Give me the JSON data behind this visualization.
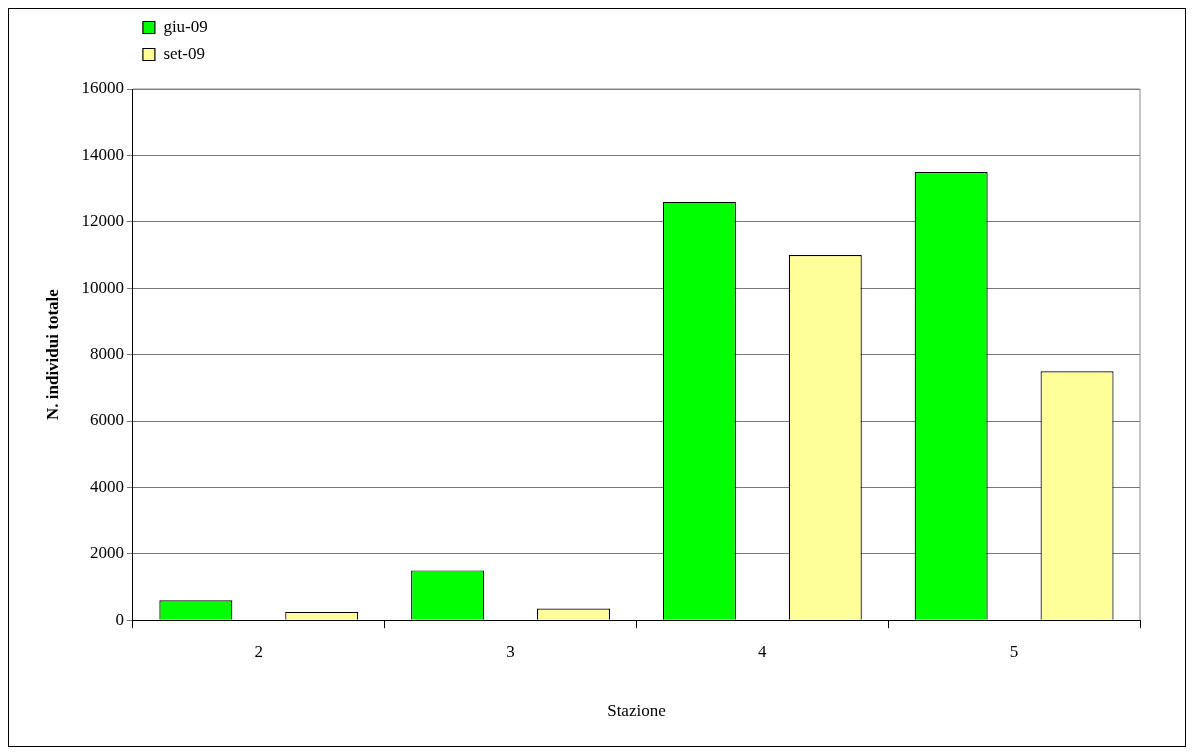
{
  "chart_data": {
    "type": "bar",
    "xlabel": "Stazione",
    "ylabel": "N. individui totale",
    "categories": [
      "2",
      "3",
      "4",
      "5"
    ],
    "series": [
      {
        "name": "giu-09",
        "color": "#00ff00",
        "values": [
          600,
          1500,
          12600,
          13500
        ]
      },
      {
        "name": "set-09",
        "color": "#ffff99",
        "values": [
          250,
          350,
          11000,
          7500
        ]
      }
    ],
    "ylim": [
      0,
      16000
    ],
    "yticks": [
      0,
      2000,
      4000,
      6000,
      8000,
      10000,
      12000,
      14000,
      16000
    ],
    "grid": "y",
    "legend": "top left"
  }
}
